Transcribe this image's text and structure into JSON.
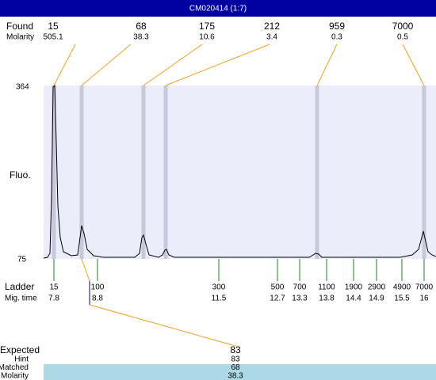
{
  "header": {
    "title": "CM020414 (1:7)"
  },
  "found": {
    "label": "Found",
    "sublabel": "Molarity",
    "peaks": [
      {
        "size": 15,
        "molarity": 505.1
      },
      {
        "size": 68,
        "molarity": 38.3
      },
      {
        "size": 175,
        "molarity": 10.6
      },
      {
        "size": 212,
        "molarity": 3.4
      },
      {
        "size": 959,
        "molarity": 0.3
      },
      {
        "size": 7000,
        "molarity": 0.5
      }
    ]
  },
  "plot": {
    "y_label": "Fluo.",
    "y_max": 364,
    "y_min": 75
  },
  "ladder": {
    "label": "Ladder",
    "sublabel": "Mig. time",
    "items": [
      {
        "size": 15,
        "time": 7.8
      },
      {
        "size": 100,
        "time": 8.8
      },
      {
        "size": 300,
        "time": 11.5
      },
      {
        "size": 500,
        "time": 12.7
      },
      {
        "size": 700,
        "time": 13.3
      },
      {
        "size": 1100,
        "time": 13.8
      },
      {
        "size": 1900,
        "time": 14.4
      },
      {
        "size": 2900,
        "time": 14.9
      },
      {
        "size": 4900,
        "time": 15.5
      },
      {
        "size": 7000,
        "time": 16
      }
    ]
  },
  "expected": {
    "label": "Expected",
    "value": 83,
    "rows": [
      {
        "label": "Hint",
        "value": 83
      },
      {
        "label": "Matched",
        "value": 68
      },
      {
        "label": "Molarity",
        "value": 38.3
      }
    ]
  }
}
